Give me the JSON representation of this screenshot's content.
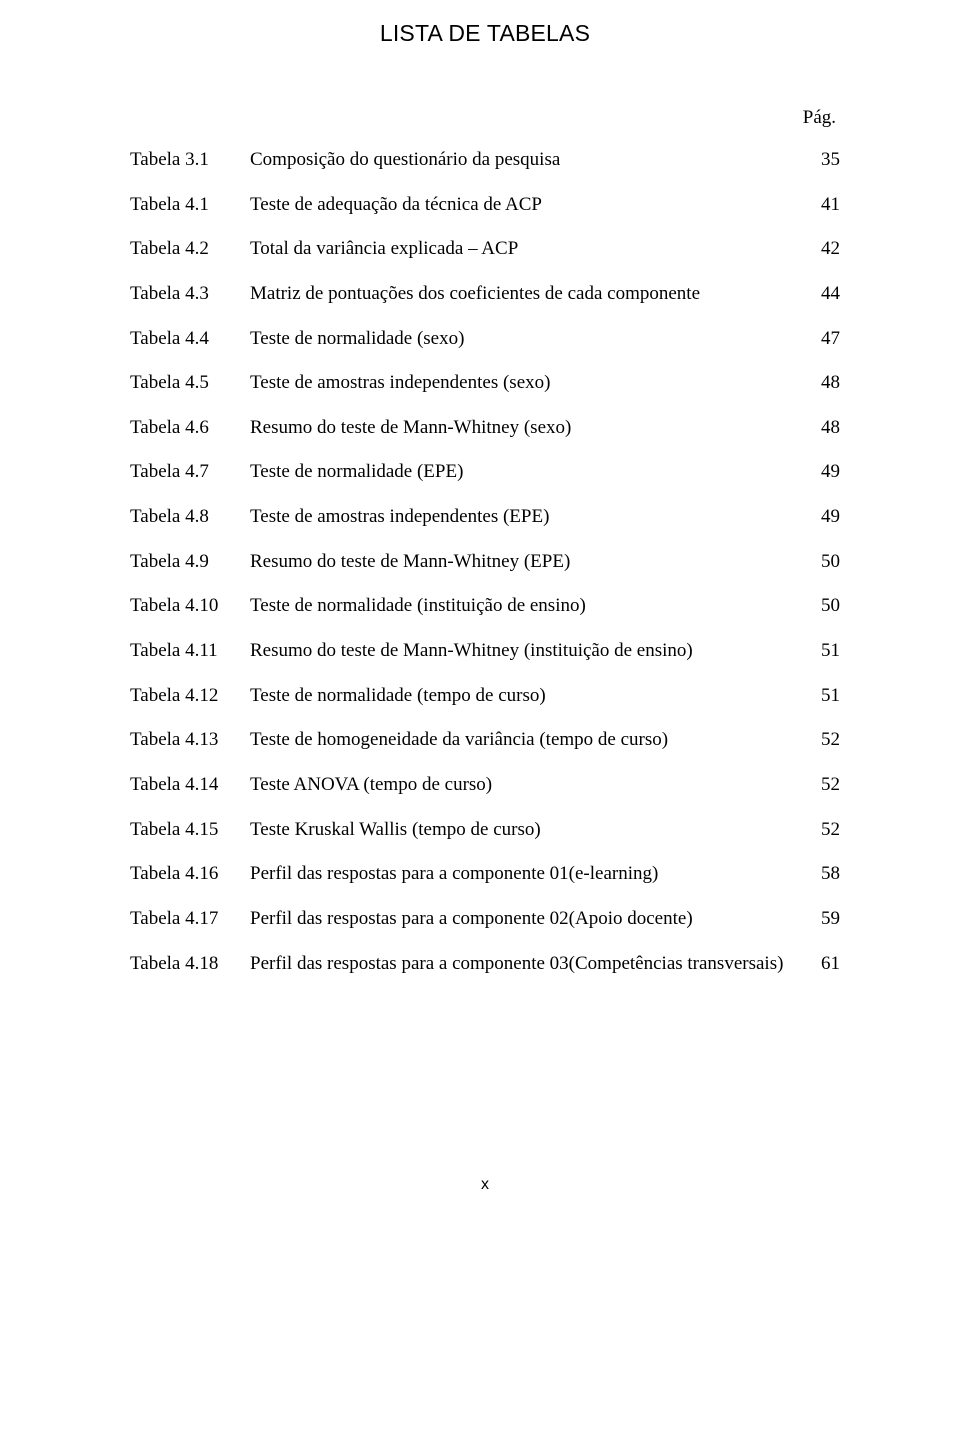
{
  "heading": "LISTA DE TABELAS",
  "page_label": "Pág.",
  "footer": "x",
  "colors": {
    "background": "#ffffff",
    "text": "#000000"
  },
  "typography": {
    "heading_font": "Arial",
    "heading_size_pt": 17,
    "body_font": "Times New Roman",
    "body_size_pt": 14.5
  },
  "rows": [
    {
      "id": "Tabela 3.1",
      "desc": "Composição do questionário da pesquisa",
      "pg": "35"
    },
    {
      "id": "Tabela 4.1",
      "desc": "Teste de adequação da técnica de ACP",
      "pg": "41"
    },
    {
      "id": "Tabela 4.2",
      "desc": "Total da variância explicada – ACP",
      "pg": "42"
    },
    {
      "id": "Tabela 4.3",
      "desc": "Matriz de pontuações dos coeficientes de cada componente",
      "pg": "44"
    },
    {
      "id": "Tabela 4.4",
      "desc": "Teste de normalidade (sexo)",
      "pg": "47"
    },
    {
      "id": "Tabela 4.5",
      "desc": "Teste de amostras independentes (sexo)",
      "pg": "48"
    },
    {
      "id": "Tabela 4.6",
      "desc": "Resumo do teste de Mann-Whitney (sexo)",
      "pg": "48"
    },
    {
      "id": "Tabela 4.7",
      "desc": "Teste de normalidade (EPE)",
      "pg": "49"
    },
    {
      "id": "Tabela 4.8",
      "desc": "Teste de amostras independentes (EPE)",
      "pg": "49"
    },
    {
      "id": "Tabela 4.9",
      "desc": "Resumo do teste de Mann-Whitney (EPE)",
      "pg": "50"
    },
    {
      "id": "Tabela 4.10",
      "desc": "Teste de normalidade (instituição de ensino)",
      "pg": "50"
    },
    {
      "id": "Tabela 4.11",
      "desc": "Resumo do teste de Mann-Whitney (instituição de ensino)",
      "pg": "51"
    },
    {
      "id": "Tabela 4.12",
      "desc": "Teste de normalidade (tempo de curso)",
      "pg": "51"
    },
    {
      "id": "Tabela 4.13",
      "desc": "Teste de homogeneidade da variância (tempo de curso)",
      "pg": "52"
    },
    {
      "id": "Tabela 4.14",
      "desc": "Teste ANOVA (tempo de curso)",
      "pg": "52"
    },
    {
      "id": "Tabela 4.15",
      "desc": "Teste Kruskal Wallis (tempo de curso)",
      "pg": "52"
    },
    {
      "id": "Tabela 4.16",
      "desc": "Perfil das respostas para a componente 01(e-learning)",
      "pg": "58"
    },
    {
      "id": "Tabela 4.17",
      "desc": "Perfil das respostas para a componente 02(Apoio docente)",
      "pg": "59"
    },
    {
      "id": "Tabela 4.18",
      "desc": "Perfil das respostas para a componente 03(Competências transversais)",
      "pg": "61"
    }
  ]
}
